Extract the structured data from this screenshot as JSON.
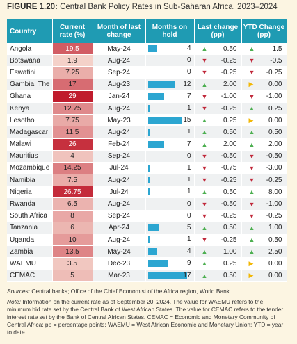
{
  "title": {
    "label": "FIGURE 1.20:",
    "text": "Central Bank Policy Rates in Sub-Saharan Africa, 2023–2024"
  },
  "table": {
    "headers": [
      "Country",
      "Current rate (%)",
      "Month of last change",
      "Months on hold",
      "Last change (pp)",
      "YTD Change (pp)"
    ],
    "rows": [
      [
        "Angola",
        19.5,
        "May-24",
        4,
        "0.50",
        "1.5"
      ],
      [
        "Botswana",
        1.9,
        "Aug-24",
        0,
        "-0.25",
        "-0.5"
      ],
      [
        "Eswatini",
        7.25,
        "Sep-24",
        0,
        "-0.25",
        "-0.25"
      ],
      [
        "Gambia, The",
        17,
        "Aug-23",
        12,
        "2.00",
        "0.00"
      ],
      [
        "Ghana",
        29,
        "Jan-24",
        7,
        "-1.00",
        "-1.00"
      ],
      [
        "Kenya",
        12.75,
        "Aug-24",
        1,
        "-0.25",
        "0.25"
      ],
      [
        "Lesotho",
        7.75,
        "May-23",
        15,
        "0.25",
        "0.00"
      ],
      [
        "Madagascar",
        11.5,
        "Aug-24",
        1,
        "0.50",
        "0.50"
      ],
      [
        "Malawi",
        26,
        "Feb-24",
        7,
        "2.00",
        "2.00"
      ],
      [
        "Mauritius",
        4,
        "Sep-24",
        0,
        "-0.50",
        "-0.50"
      ],
      [
        "Mozambique",
        14.25,
        "Jul-24",
        1,
        "-0.75",
        "-3.00"
      ],
      [
        "Namibia",
        7.5,
        "Aug-24",
        1,
        "-0.25",
        "-0.25"
      ],
      [
        "Nigeria",
        26.75,
        "Jul-24",
        1,
        "0.50",
        "8.00"
      ],
      [
        "Rwanda",
        6.5,
        "Aug-24",
        0,
        "-0.50",
        "-1.00"
      ],
      [
        "South Africa",
        8,
        "Sep-24",
        0,
        "-0.25",
        "-0.25"
      ],
      [
        "Tanzania",
        6,
        "Apr-24",
        5,
        "0.50",
        "1.00"
      ],
      [
        "Uganda",
        10,
        "Aug-24",
        1,
        "-0.25",
        "0.50"
      ],
      [
        "Zambia",
        13.5,
        "May-24",
        4,
        "1.00",
        "2.50"
      ],
      [
        "WAEMU",
        3.5,
        "Dec-23",
        9,
        "0.25",
        "0.00"
      ],
      [
        "CEMAC",
        5,
        "Mar-23",
        17,
        "0.50",
        "0.00"
      ]
    ]
  },
  "sources": {
    "label": "Sources:",
    "text": "Central banks; Office of the Chief Economist of the Africa region, World Bank."
  },
  "note": {
    "label": "Note:",
    "text": "Information on the current rate as of September 20, 2024. The value for WAEMU refers to the minimum bid rate set by the Central Bank of West African States. The value for CEMAC refers to the tender interest rate set by the Bank of Central African States. CEMAC = Economic and Monetary Community of Central Africa; pp = percentage points; WAEMU = West African Economic and Monetary Union; YTD = year to date."
  }
}
